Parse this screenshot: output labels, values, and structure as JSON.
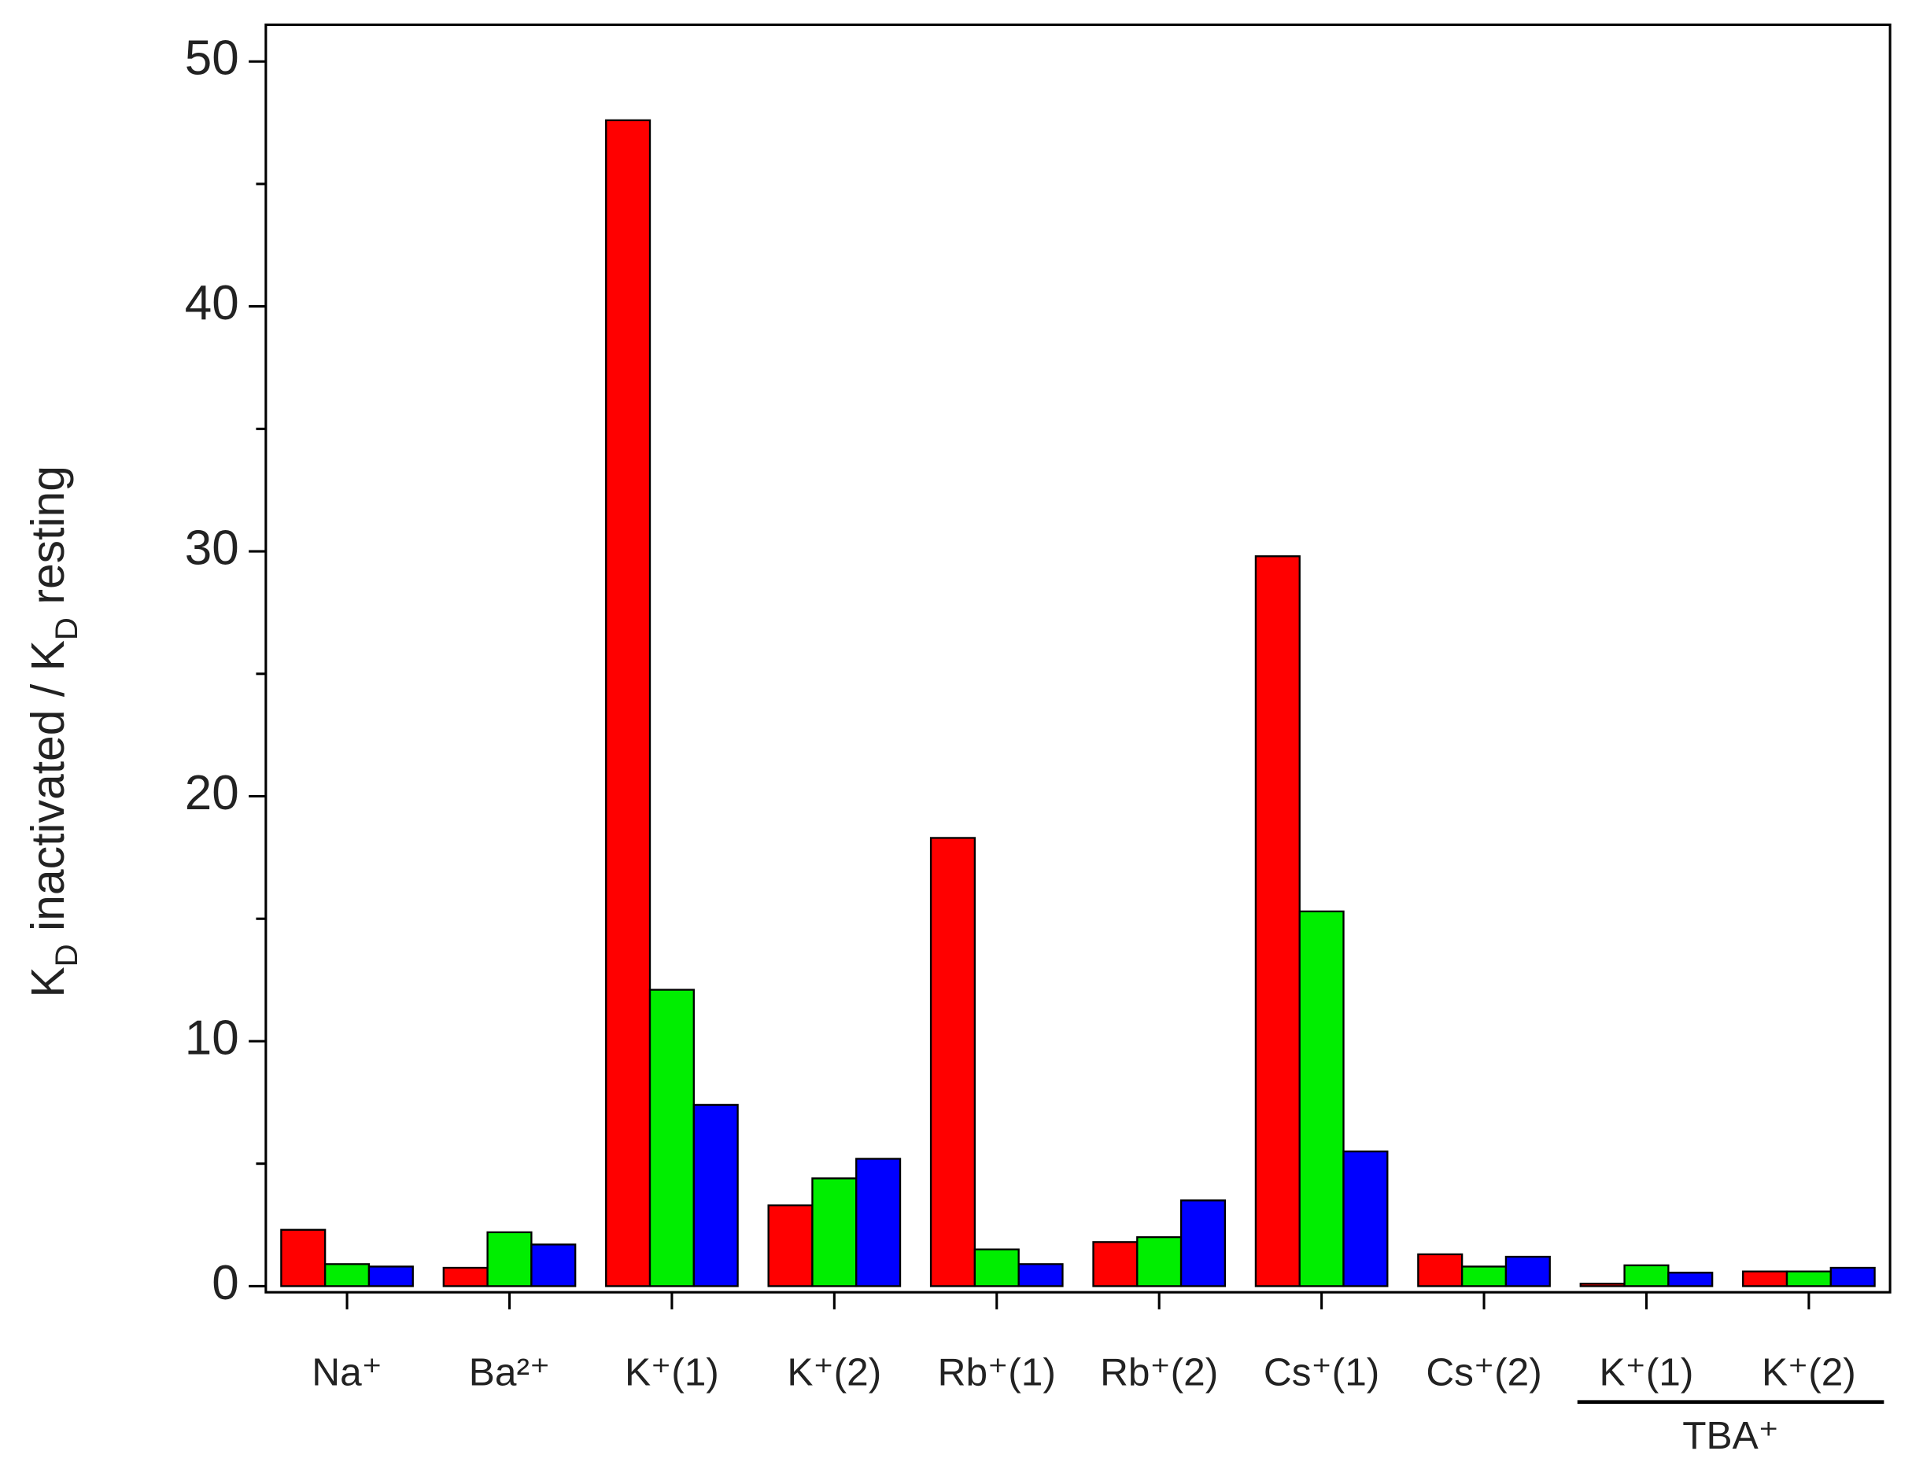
{
  "chart_data": {
    "type": "bar",
    "y_label": [
      {
        "text": "K"
      },
      {
        "text": "D",
        "sub": true
      },
      {
        "text": " inactivated / K"
      },
      {
        "text": "D",
        "sub": true
      },
      {
        "text": " resting"
      }
    ],
    "categories": [
      "Na⁺",
      "Ba²⁺",
      "K⁺(1)",
      "K⁺(2)",
      "Rb⁺(1)",
      "Rb⁺(2)",
      "Cs⁺(1)",
      "Cs⁺(2)",
      "K⁺(1)",
      "K⁺(2)"
    ],
    "group_label": {
      "text": "TBA⁺",
      "from": 8,
      "to": 9
    },
    "series": [
      {
        "color": "#ff0000",
        "values": [
          2.3,
          0.75,
          47.6,
          3.3,
          18.3,
          1.8,
          29.8,
          1.3,
          0.1,
          0.6
        ]
      },
      {
        "color": "#00ee00",
        "values": [
          0.9,
          2.2,
          12.1,
          4.4,
          1.5,
          2.0,
          15.3,
          0.8,
          0.85,
          0.6
        ]
      },
      {
        "color": "#0000ff",
        "values": [
          0.8,
          1.7,
          7.4,
          5.2,
          0.9,
          3.5,
          5.5,
          1.2,
          0.55,
          0.75
        ]
      }
    ],
    "ylim": [
      -0.25,
      51.5
    ],
    "yticks": [
      0,
      10,
      20,
      30,
      40,
      50
    ],
    "yminorticks": [
      5,
      15,
      25,
      35,
      45
    ]
  }
}
